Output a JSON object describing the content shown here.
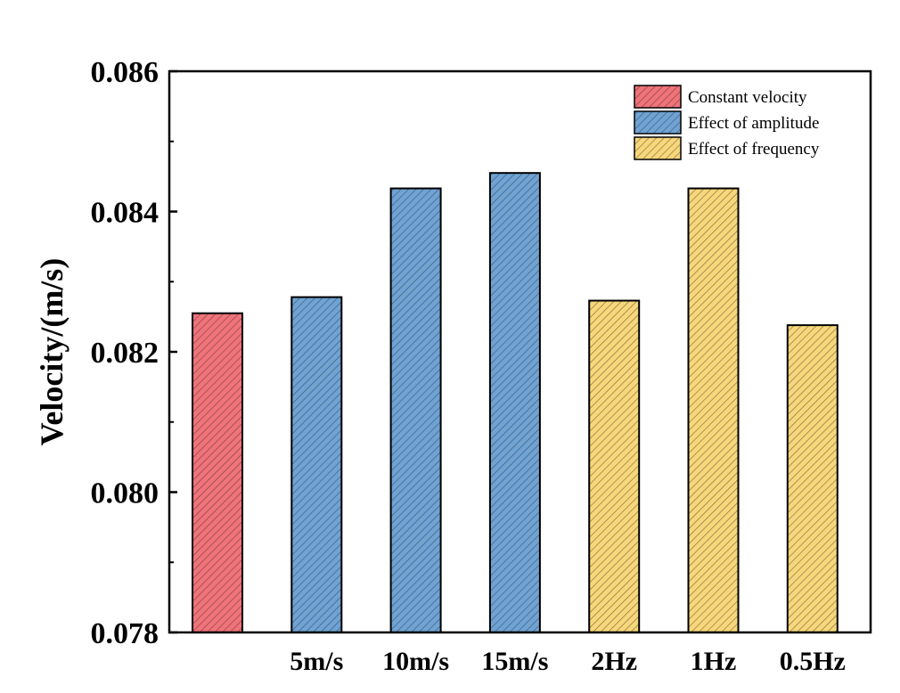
{
  "chart_data": {
    "type": "bar",
    "title": "",
    "xlabel": "",
    "ylabel": "Velocity/(m/s)",
    "ylim": [
      0.078,
      0.086
    ],
    "yticks": [
      "0.078",
      "0.080",
      "0.082",
      "0.084",
      "0.086"
    ],
    "ytick_values": [
      0.078,
      0.08,
      0.082,
      0.084,
      0.086
    ],
    "grid": false,
    "legend_position": "top-right",
    "categories": [
      "",
      "5m/s",
      "10m/s",
      "15m/s",
      "2Hz",
      "1Hz",
      "0.5Hz"
    ],
    "values": [
      0.08255,
      0.08278,
      0.08433,
      0.08455,
      0.08273,
      0.08433,
      0.08238
    ],
    "bar_groups": [
      0,
      1,
      1,
      1,
      2,
      2,
      2
    ],
    "series": [
      {
        "name": "Constant velocity",
        "color": "#f0737a"
      },
      {
        "name": "Effect of amplitude",
        "color": "#6fa3d4"
      },
      {
        "name": "Effect of frequency",
        "color": "#f7d77a"
      }
    ]
  }
}
